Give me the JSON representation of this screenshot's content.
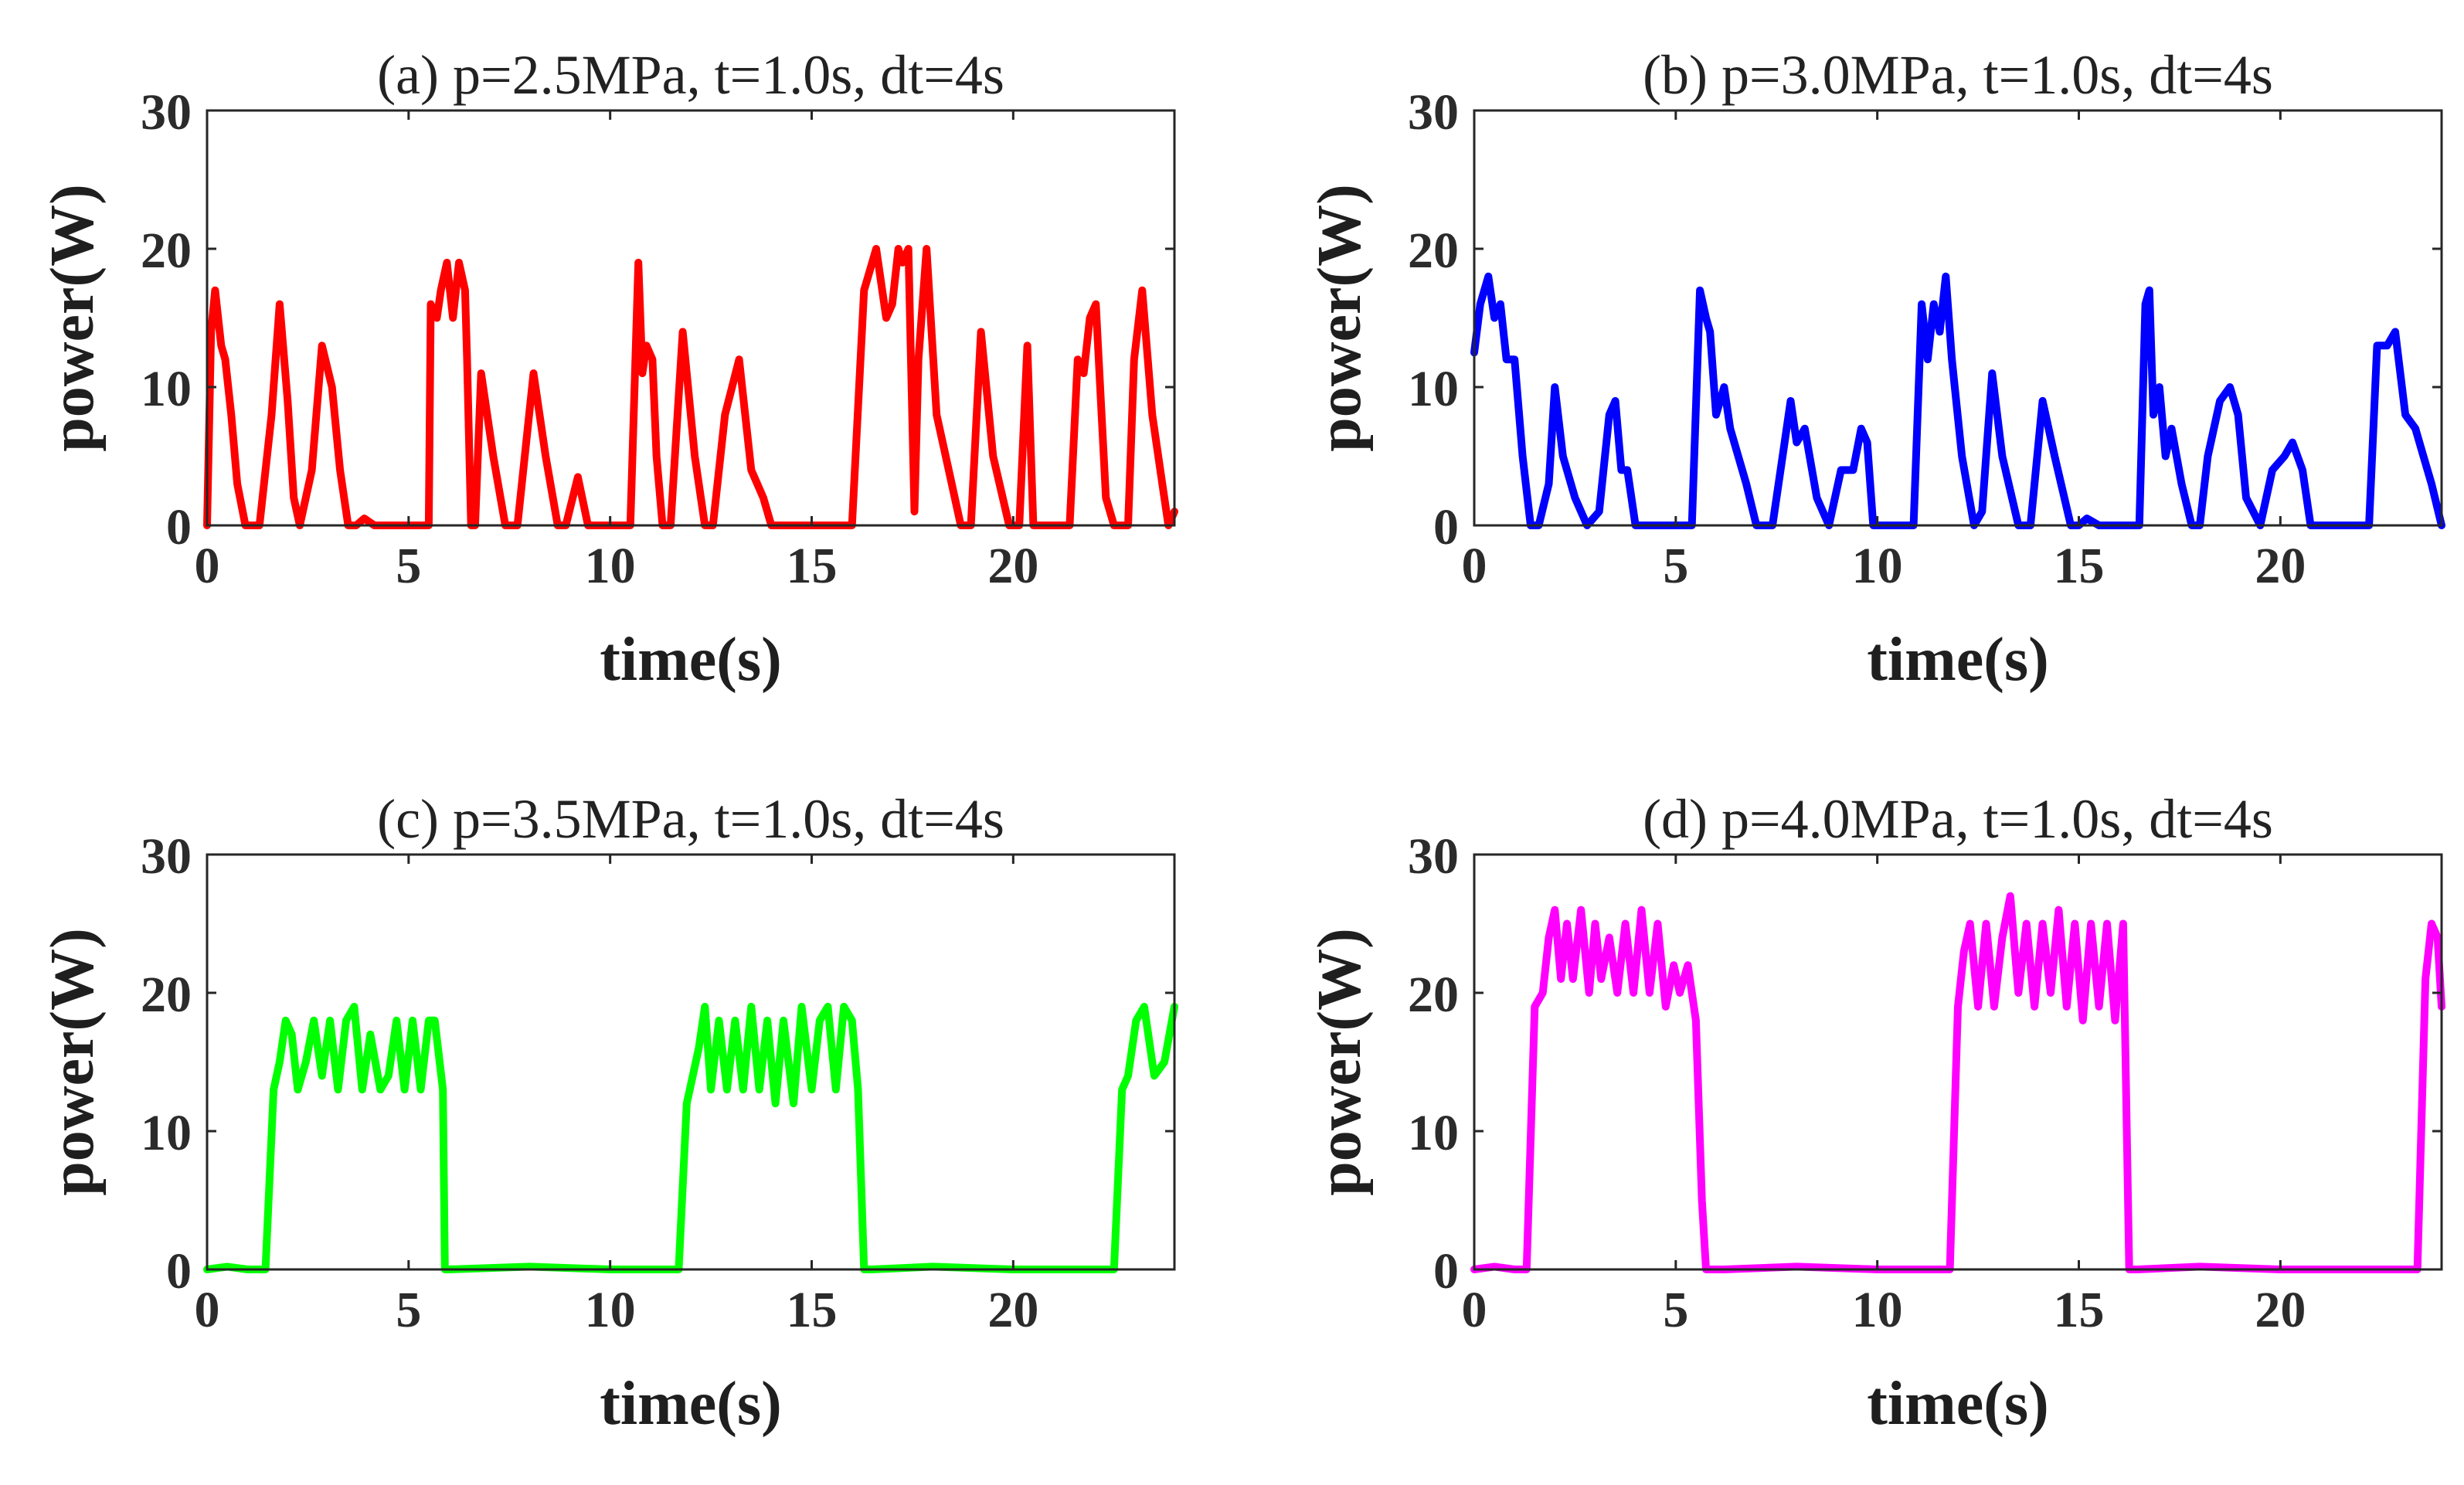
{
  "chart_data": [
    {
      "type": "line",
      "title": "(a) p=2.5MPa, t=1.0s, dt=4s",
      "xlabel": "time(s)",
      "ylabel": "power(W)",
      "xlim": [
        0,
        24
      ],
      "ylim": [
        0,
        30
      ],
      "xticks": [
        0,
        5,
        10,
        15,
        20
      ],
      "yticks": [
        0,
        10,
        20,
        30
      ],
      "color": "#ff0000",
      "series": [
        {
          "name": "p=2.5MPa",
          "x": [
            0,
            0.1,
            0.2,
            0.35,
            0.45,
            0.6,
            0.75,
            0.95,
            1.1,
            1.3,
            1.6,
            1.8,
            2.0,
            2.15,
            2.3,
            2.6,
            2.85,
            3.1,
            3.3,
            3.5,
            3.7,
            3.9,
            4.15,
            4.3,
            4.5,
            5.0,
            5.5,
            5.55,
            5.7,
            5.8,
            5.95,
            6.1,
            6.25,
            6.4,
            6.45,
            6.55,
            6.65,
            6.8,
            7.1,
            7.4,
            7.7,
            8.1,
            8.4,
            8.7,
            8.9,
            9.2,
            9.45,
            9.55,
            9.65,
            10.0,
            10.5,
            10.7,
            10.8,
            10.9,
            11.05,
            11.15,
            11.3,
            11.5,
            11.8,
            12.1,
            12.35,
            12.55,
            12.85,
            13.2,
            13.5,
            13.8,
            14.0,
            14.2,
            14.5,
            15.0,
            15.5,
            16.0,
            16.3,
            16.6,
            16.85,
            17.0,
            17.15,
            17.25,
            17.4,
            17.55,
            17.65,
            17.85,
            18.1,
            18.4,
            18.7,
            18.95,
            19.2,
            19.5,
            19.9,
            20.15,
            20.35,
            20.5,
            21.0,
            21.4,
            21.6,
            21.75,
            21.9,
            22.05,
            22.3,
            22.5,
            22.85,
            23.0,
            23.2,
            23.45,
            23.7,
            23.85,
            24.0
          ],
          "y": [
            0,
            14,
            17,
            13,
            12,
            8,
            3,
            0,
            0,
            0,
            8,
            16,
            9,
            2,
            0,
            4,
            13,
            10,
            4,
            0,
            0,
            0.5,
            0,
            0,
            0,
            0,
            0,
            16,
            15,
            17,
            19,
            15,
            19,
            17,
            12,
            0,
            0,
            11,
            5,
            0,
            0,
            11,
            5,
            0,
            0,
            3.5,
            0,
            0,
            0,
            0,
            0,
            19,
            11,
            13,
            12,
            5,
            0,
            0,
            14,
            5,
            0,
            0,
            8,
            12,
            4,
            2,
            0,
            0,
            0,
            0,
            0,
            0,
            17,
            20,
            15,
            16,
            20,
            19,
            20,
            1,
            12,
            20,
            8,
            4,
            0,
            0,
            14,
            5,
            0,
            0,
            13,
            0,
            0,
            0,
            12,
            11,
            15,
            16,
            2,
            0,
            0,
            12,
            17,
            8,
            3,
            0,
            1
          ]
        }
      ]
    },
    {
      "type": "line",
      "title": "(b) p=3.0MPa, t=1.0s, dt=4s",
      "xlabel": "time(s)",
      "ylabel": "power(W)",
      "xlim": [
        0,
        24
      ],
      "ylim": [
        0,
        30
      ],
      "xticks": [
        0,
        5,
        10,
        15,
        20
      ],
      "yticks": [
        0,
        10,
        20,
        30
      ],
      "color": "#0000ff",
      "series": [
        {
          "name": "p=3.0MPa",
          "x": [
            0,
            0.15,
            0.35,
            0.5,
            0.65,
            0.8,
            1.0,
            1.2,
            1.4,
            1.6,
            1.85,
            2.0,
            2.2,
            2.5,
            2.8,
            3.1,
            3.35,
            3.5,
            3.65,
            3.8,
            4.0,
            4.5,
            5.0,
            5.4,
            5.6,
            5.75,
            5.85,
            6.0,
            6.2,
            6.35,
            6.55,
            6.75,
            7.0,
            7.4,
            7.7,
            7.85,
            8.0,
            8.2,
            8.5,
            8.8,
            9.1,
            9.4,
            9.6,
            9.75,
            9.9,
            10.3,
            10.6,
            10.9,
            11.1,
            11.25,
            11.4,
            11.55,
            11.7,
            11.85,
            12.1,
            12.4,
            12.6,
            12.85,
            13.1,
            13.5,
            13.8,
            14.1,
            14.4,
            14.8,
            15.0,
            15.2,
            15.5,
            16.2,
            16.5,
            16.65,
            16.75,
            16.85,
            17.0,
            17.15,
            17.3,
            17.55,
            17.8,
            18.0,
            18.2,
            18.5,
            18.75,
            18.95,
            19.15,
            19.5,
            19.8,
            20.1,
            20.3,
            20.55,
            20.75,
            21.0,
            21.5,
            22.2,
            22.4,
            22.65,
            22.85,
            23.1,
            23.35,
            23.55,
            23.75,
            24.0
          ],
          "y": [
            12.5,
            16,
            18,
            15,
            16,
            12,
            12,
            5,
            0,
            0,
            3,
            10,
            5,
            2,
            0,
            1,
            8,
            9,
            4,
            4,
            0,
            0,
            0,
            0,
            17,
            15,
            14,
            8,
            10,
            7,
            5,
            3,
            0,
            0,
            6,
            9,
            6,
            7,
            2,
            0,
            4,
            4,
            7,
            6,
            0,
            0,
            0,
            0,
            16,
            12,
            16,
            14,
            18,
            12,
            5,
            0,
            1,
            11,
            5,
            0,
            0,
            9,
            5,
            0,
            0,
            0.5,
            0,
            0,
            0,
            16,
            17,
            8,
            10,
            5,
            7,
            3,
            0,
            0,
            5,
            9,
            10,
            8,
            2,
            0,
            4,
            5,
            6,
            4,
            0,
            0,
            0,
            0,
            13,
            13,
            14,
            8,
            7,
            5,
            3,
            0
          ]
        }
      ]
    },
    {
      "type": "line",
      "title": "(c) p=3.5MPa, t=1.0s, dt=4s",
      "xlabel": "time(s)",
      "ylabel": "power(W)",
      "xlim": [
        0,
        24
      ],
      "ylim": [
        0,
        30
      ],
      "xticks": [
        0,
        5,
        10,
        15,
        20
      ],
      "yticks": [
        0,
        10,
        20,
        30
      ],
      "color": "#00ff00",
      "series": [
        {
          "name": "p=3.5MPa",
          "x": [
            0,
            0.5,
            1.0,
            1.45,
            1.65,
            1.8,
            1.95,
            2.1,
            2.25,
            2.45,
            2.65,
            2.85,
            3.05,
            3.25,
            3.45,
            3.65,
            3.85,
            4.05,
            4.3,
            4.5,
            4.7,
            4.9,
            5.1,
            5.3,
            5.5,
            5.65,
            5.85,
            5.9,
            6.0,
            8.0,
            10.0,
            11.7,
            11.9,
            12.05,
            12.2,
            12.35,
            12.5,
            12.7,
            12.9,
            13.1,
            13.3,
            13.5,
            13.7,
            13.9,
            14.1,
            14.3,
            14.55,
            14.75,
            15.0,
            15.2,
            15.4,
            15.6,
            15.8,
            16.0,
            16.15,
            16.3,
            16.5,
            18.0,
            20.0,
            22.0,
            22.5,
            22.7,
            22.85,
            23.05,
            23.25,
            23.5,
            23.75,
            24.0
          ],
          "y": [
            0,
            0.2,
            0,
            0,
            13,
            15,
            18,
            17,
            13,
            15,
            18,
            14,
            18,
            13,
            18,
            19,
            13,
            17,
            13,
            14,
            18,
            13,
            18,
            13,
            18,
            18,
            13,
            0,
            0,
            0.2,
            0,
            0,
            12,
            14,
            16,
            19,
            13,
            18,
            13,
            18,
            13,
            19,
            13,
            18,
            12,
            18,
            12,
            19,
            13,
            18,
            19,
            13,
            19,
            18,
            13,
            0,
            0,
            0.2,
            0,
            0,
            0,
            13,
            14,
            18,
            19,
            14,
            15,
            19
          ]
        }
      ]
    },
    {
      "type": "line",
      "title": "(d) p=4.0MPa, t=1.0s, dt=4s",
      "xlabel": "time(s)",
      "ylabel": "power(W)",
      "xlim": [
        0,
        24
      ],
      "ylim": [
        0,
        30
      ],
      "xticks": [
        0,
        5,
        10,
        15,
        20
      ],
      "yticks": [
        0,
        10,
        20,
        30
      ],
      "color": "#ff00ff",
      "series": [
        {
          "name": "p=4.0MPa",
          "x": [
            0,
            0.5,
            1.0,
            1.3,
            1.5,
            1.7,
            1.85,
            2.0,
            2.15,
            2.3,
            2.45,
            2.65,
            2.85,
            3.0,
            3.15,
            3.35,
            3.55,
            3.75,
            3.95,
            4.15,
            4.35,
            4.55,
            4.75,
            4.95,
            5.1,
            5.3,
            5.5,
            5.65,
            5.75,
            5.9,
            6.2,
            8.0,
            10.0,
            11.8,
            12.0,
            12.15,
            12.3,
            12.5,
            12.7,
            12.9,
            13.1,
            13.3,
            13.5,
            13.7,
            13.9,
            14.1,
            14.3,
            14.5,
            14.7,
            14.9,
            15.1,
            15.3,
            15.5,
            15.7,
            15.9,
            16.1,
            16.25,
            16.45,
            18.0,
            20.0,
            22.0,
            23.4,
            23.6,
            23.75,
            23.9,
            24.0
          ],
          "y": [
            0,
            0.2,
            0,
            0,
            19,
            20,
            24,
            26,
            21,
            25,
            21,
            26,
            20,
            25,
            21,
            24,
            20,
            25,
            20,
            26,
            20,
            25,
            19,
            22,
            20,
            22,
            18,
            5,
            0,
            0,
            0,
            0.2,
            0,
            0,
            19,
            23,
            25,
            19,
            25,
            19,
            24,
            27,
            20,
            25,
            19,
            25,
            20,
            26,
            19,
            25,
            18,
            25,
            19,
            25,
            18,
            25,
            0,
            0,
            0.2,
            0,
            0,
            0,
            21,
            25,
            24,
            19
          ]
        }
      ]
    }
  ]
}
